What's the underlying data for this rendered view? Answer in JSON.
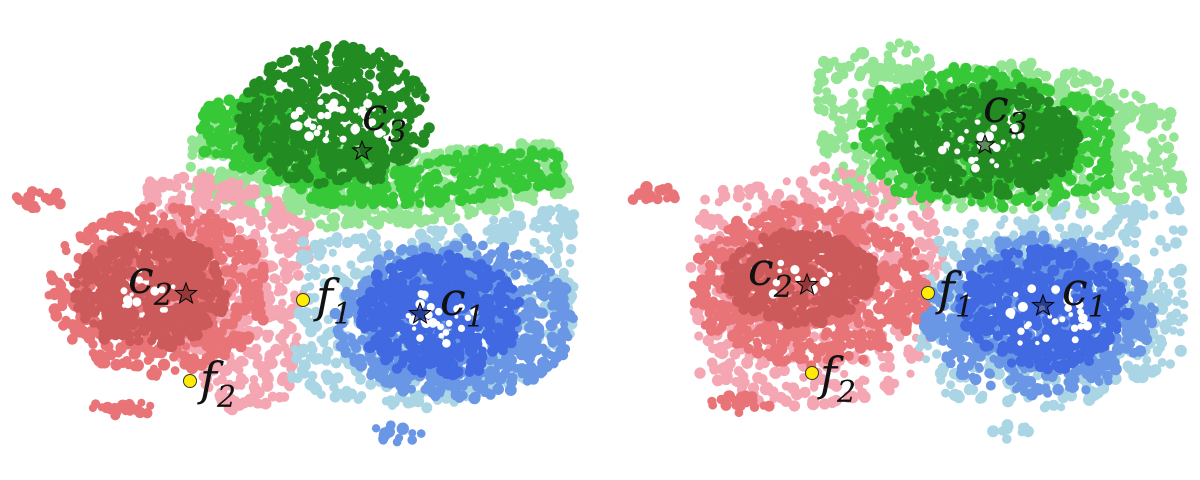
{
  "colors": {
    "pink": "#f4a7b3",
    "red_mid": "#e87478",
    "red_dark": "#cd5a5a",
    "blue_light": "#a9d5e4",
    "blue_mid": "#6a96e6",
    "blue_dark": "#4169e1",
    "green_light": "#93e493",
    "green_mid": "#36c836",
    "green_dark": "#228b22",
    "feature_point": "#ffec00"
  },
  "panels": [
    {
      "id": "left",
      "centroids": [
        {
          "id": "c1",
          "label": "c",
          "sub": "1",
          "color": "#1a2e78"
        },
        {
          "id": "c2",
          "label": "c",
          "sub": "2",
          "color": "#7a2a2a"
        },
        {
          "id": "c3",
          "label": "c",
          "sub": "3",
          "color": "#1b5a1b"
        }
      ],
      "points": [
        {
          "id": "f1",
          "label": "f",
          "sub": "1"
        },
        {
          "id": "f2",
          "label": "f",
          "sub": "2"
        }
      ]
    },
    {
      "id": "right",
      "centroids": [
        {
          "id": "c1",
          "label": "c",
          "sub": "1",
          "color": "#1a2e78"
        },
        {
          "id": "c2",
          "label": "c",
          "sub": "2",
          "color": "#7a2a2a"
        },
        {
          "id": "c3",
          "label": "c",
          "sub": "3",
          "color": "#1b5a1b"
        }
      ],
      "points": [
        {
          "id": "f1",
          "label": "f",
          "sub": "1"
        },
        {
          "id": "f2",
          "label": "f",
          "sub": "2"
        }
      ]
    }
  ]
}
